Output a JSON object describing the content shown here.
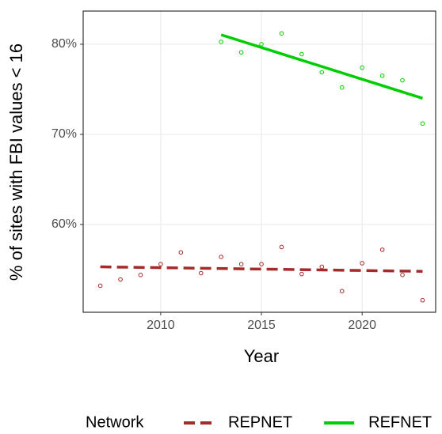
{
  "chart_data": {
    "type": "scatter",
    "x_label": "Year",
    "y_label": "% of sites with FBI values < 16",
    "legend_title": "Network",
    "legend": "bottom",
    "grid": true,
    "xlim": [
      2006.15,
      2023.65
    ],
    "xticks": [
      2010,
      2015,
      2020
    ],
    "ylim": [
      50.26,
      83.68
    ],
    "yticks": [
      {
        "value": 60,
        "label": "60%"
      },
      {
        "value": 70,
        "label": "70%"
      },
      {
        "value": 80,
        "label": "80%"
      }
    ],
    "series": [
      {
        "name": "REPNET",
        "color": "#a52a2a",
        "dash": true,
        "x": [
          2007,
          2008,
          2009,
          2010,
          2011,
          2012,
          2013,
          2014,
          2015,
          2016,
          2017,
          2018,
          2019,
          2020,
          2021,
          2022,
          2023
        ],
        "values": [
          53.2,
          53.9,
          54.4,
          55.6,
          56.9,
          54.6,
          56.4,
          55.6,
          55.6,
          57.5,
          54.5,
          55.3,
          52.6,
          55.7,
          57.2,
          54.4,
          51.6
        ],
        "trend_x": [
          2007,
          2023
        ],
        "trend": [
          55.3,
          54.8
        ]
      },
      {
        "name": "REFNET",
        "color": "#00cd00",
        "dash": false,
        "x": [
          2013,
          2014,
          2015,
          2016,
          2017,
          2018,
          2019,
          2020,
          2021,
          2022,
          2023
        ],
        "values": [
          80.26,
          79.1,
          80.0,
          81.2,
          78.9,
          76.9,
          75.2,
          77.4,
          76.5,
          76.0,
          71.2
        ],
        "trend_x": [
          2013,
          2023
        ],
        "trend": [
          81.05,
          74.0
        ]
      }
    ]
  }
}
